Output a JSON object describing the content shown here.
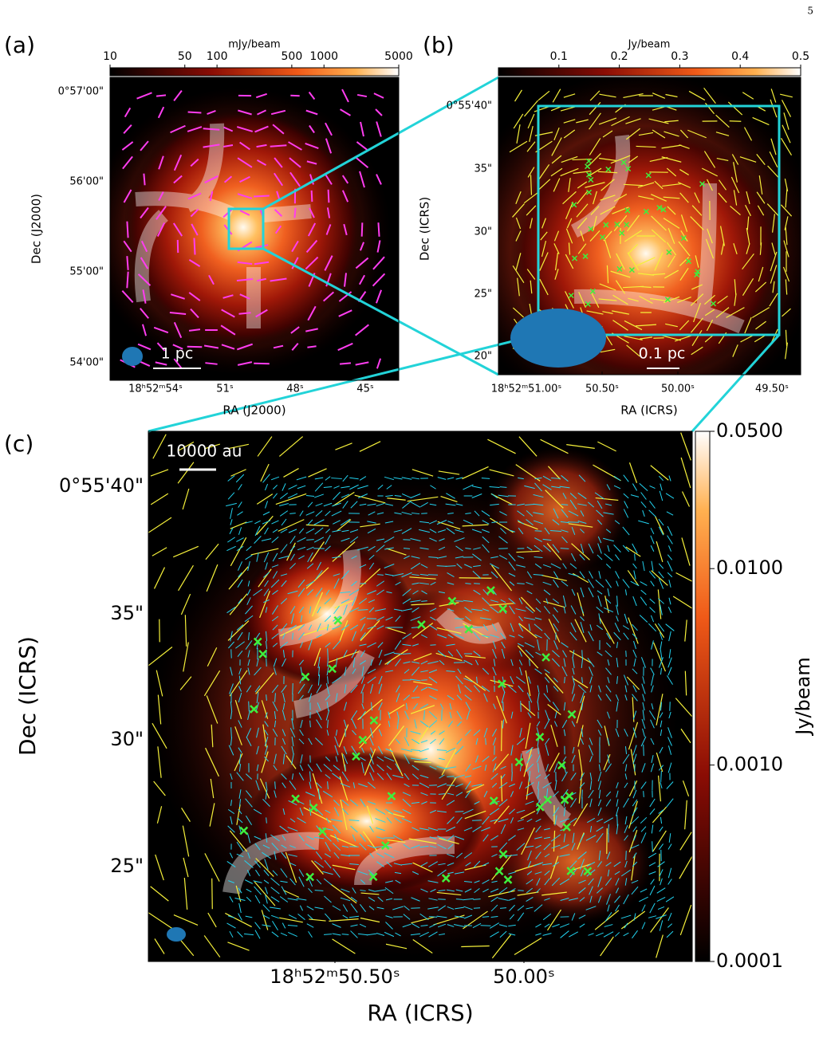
{
  "page_number": "5",
  "panels": [
    {
      "label": "(a)",
      "colorbar": {
        "label": "mJy/beam",
        "scale": "log",
        "lim": [
          10,
          5000
        ],
        "ticks": [
          10,
          50,
          100,
          500,
          1000,
          5000
        ]
      },
      "x_axis": {
        "label": "RA (J2000)",
        "ticks": [
          "18ʰ52ᵐ54ˢ",
          "51ˢ",
          "48ˢ",
          "45ˢ"
        ]
      },
      "y_axis": {
        "label": "Dec (J2000)",
        "ticks": [
          "0°57'00\"",
          "56'00\"",
          "55'00\"",
          "54'00\""
        ]
      },
      "scale_bar": "1 pc"
    },
    {
      "label": "(b)",
      "colorbar": {
        "label": "Jy/beam",
        "scale": "linear",
        "lim": [
          0,
          0.5
        ],
        "ticks": [
          0.1,
          0.2,
          0.3,
          0.4,
          0.5
        ]
      },
      "x_axis": {
        "label": "RA (ICRS)",
        "ticks": [
          "18ʰ52ᵐ51.00ˢ",
          "50.50ˢ",
          "50.00ˢ",
          "49.50ˢ"
        ]
      },
      "y_axis": {
        "label": "Dec (ICRS)",
        "ticks": [
          "0°55'40\"",
          "35\"",
          "30\"",
          "25\"",
          "20\""
        ]
      },
      "scale_bar": "0.1 pc"
    },
    {
      "label": "(c)",
      "colorbar": {
        "label": "Jy/beam",
        "scale": "log",
        "lim": [
          0.0001,
          0.05
        ],
        "ticks": [
          {
            "value": 0.05,
            "label": "0.0500"
          },
          {
            "value": 0.01,
            "label": "0.0100"
          },
          {
            "value": 0.001,
            "label": "0.0010"
          },
          {
            "value": 0.0001,
            "label": "0.0001"
          }
        ]
      },
      "x_axis": {
        "label": "RA (ICRS)",
        "ticks": [
          "18ʰ52ᵐ50.50ˢ",
          "50.00ˢ"
        ]
      },
      "y_axis": {
        "label": "Dec (ICRS)",
        "ticks": [
          "0°55'40\"",
          "35\"",
          "30\"",
          "25\""
        ]
      },
      "scale_bar": "10000 au"
    }
  ]
}
